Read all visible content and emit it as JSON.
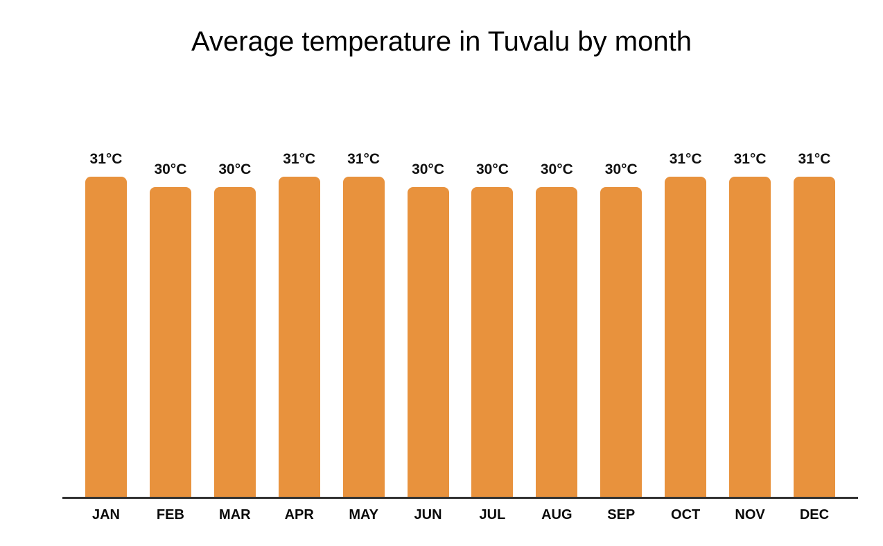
{
  "chart_data": {
    "type": "bar",
    "title": "Average temperature in Tuvalu by month",
    "categories": [
      "JAN",
      "FEB",
      "MAR",
      "APR",
      "MAY",
      "JUN",
      "JUL",
      "AUG",
      "SEP",
      "OCT",
      "NOV",
      "DEC"
    ],
    "values": [
      31,
      30,
      30,
      31,
      31,
      30,
      30,
      30,
      30,
      31,
      31,
      31
    ],
    "value_labels": [
      "31°C",
      "30°C",
      "30°C",
      "31°C",
      "31°C",
      "30°C",
      "30°C",
      "30°C",
      "30°C",
      "31°C",
      "31°C",
      "31°C"
    ],
    "unit": "°C",
    "xlabel": "",
    "ylabel": "",
    "ylim": [
      0,
      31
    ],
    "grid": false,
    "legend_position": "none",
    "bar_color": "#E8923D",
    "axis_color": "#333333",
    "label_color": "#111111",
    "background_color": "#FFFFFF"
  }
}
